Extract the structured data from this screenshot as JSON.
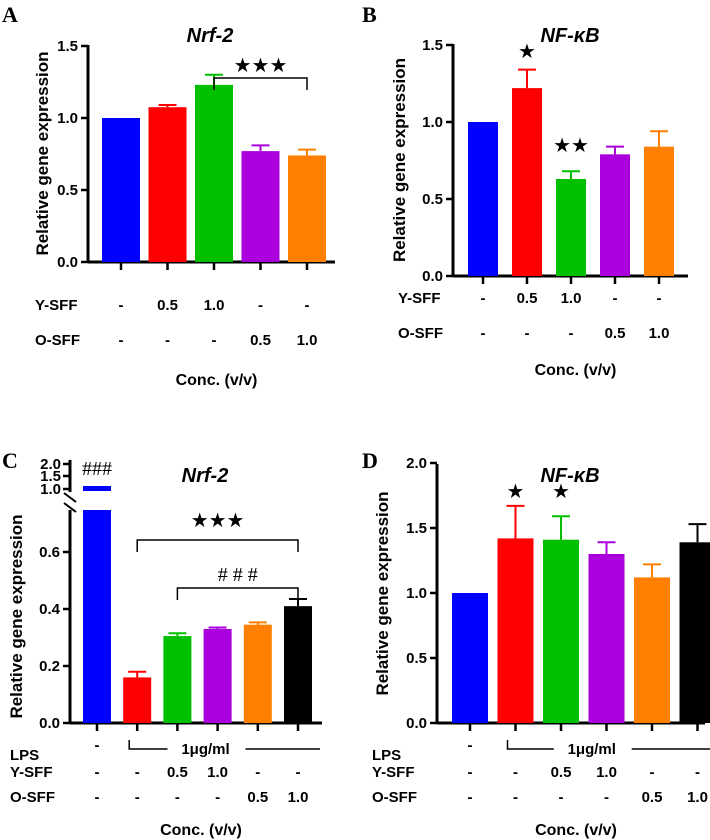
{
  "chart_data": [
    {
      "type": "bar",
      "panel": "A",
      "title": "Nrf-2",
      "ylabel": "Relative gene expression",
      "xlabel": "Conc. (v/v)",
      "ylim": [
        0,
        1.5
      ],
      "yticks": [
        "0.0",
        "0.5",
        "1.0",
        "1.5"
      ],
      "ytick_values": [
        0,
        0.5,
        1.0,
        1.5
      ],
      "colors": [
        "#0000ff",
        "#ff0000",
        "#00c000",
        "#aa00dd",
        "#ff8000"
      ],
      "values": [
        1.0,
        1.075,
        1.23,
        0.77,
        0.74
      ],
      "errors": [
        0,
        0.015,
        0.07,
        0.04,
        0.04
      ],
      "conditions": [
        {
          "name": "Y-SFF",
          "values": [
            "-",
            "0.5",
            "1.0",
            "-",
            "-"
          ]
        },
        {
          "name": "O-SFF",
          "values": [
            "-",
            "-",
            "-",
            "0.5",
            "1.0"
          ]
        }
      ],
      "annotations": [
        {
          "text": "★★★",
          "from": 2,
          "to": 4,
          "bracket": true
        }
      ]
    },
    {
      "type": "bar",
      "panel": "B",
      "title": "NF-κB",
      "ylabel": "Relative gene expression",
      "xlabel": "Conc. (v/v)",
      "ylim": [
        0,
        1.5
      ],
      "yticks": [
        "0.0",
        "0.5",
        "1.0",
        "1.5"
      ],
      "ytick_values": [
        0,
        0.5,
        1.0,
        1.5
      ],
      "colors": [
        "#0000ff",
        "#ff0000",
        "#00c000",
        "#aa00dd",
        "#ff8000"
      ],
      "values": [
        1.0,
        1.22,
        0.63,
        0.79,
        0.84
      ],
      "errors": [
        0,
        0.12,
        0.05,
        0.05,
        0.1
      ],
      "conditions": [
        {
          "name": "Y-SFF",
          "values": [
            "-",
            "0.5",
            "1.0",
            "-",
            "-"
          ]
        },
        {
          "name": "O-SFF",
          "values": [
            "-",
            "-",
            "-",
            "0.5",
            "1.0"
          ]
        }
      ],
      "annotations": [
        {
          "text": "★",
          "from": 1,
          "to": 1,
          "bracket": false
        },
        {
          "text": "★★",
          "from": 2,
          "to": 2,
          "bracket": false
        }
      ]
    },
    {
      "type": "bar",
      "panel": "C",
      "title": "Nrf-2",
      "ylabel": "Relative gene expression",
      "xlabel": "Conc. (v/v)",
      "ylim": [
        0,
        2.0
      ],
      "axis_break": [
        0.75,
        1.0
      ],
      "yticks": [
        "0.0",
        "0.2",
        "0.4",
        "0.6"
      ],
      "ytick_values": [
        0,
        0.2,
        0.4,
        0.6
      ],
      "upper_yticks": [
        "1.0",
        "1.5",
        "2.0"
      ],
      "colors": [
        "#0000ff",
        "#ff0000",
        "#00c000",
        "#aa00dd",
        "#ff8000",
        "#000000"
      ],
      "values": [
        1.0,
        0.16,
        0.305,
        0.33,
        0.345,
        0.41
      ],
      "errors": [
        0,
        0.02,
        0.01,
        0.005,
        0.008,
        0.025
      ],
      "lps": {
        "name": "LPS",
        "first": "-",
        "dose": "1μg/ml"
      },
      "conditions": [
        {
          "name": "Y-SFF",
          "values": [
            "-",
            "-",
            "0.5",
            "1.0",
            "-",
            "-"
          ]
        },
        {
          "name": "O-SFF",
          "values": [
            "-",
            "-",
            "-",
            "-",
            "0.5",
            "1.0"
          ]
        }
      ],
      "annotations": [
        {
          "text": "###",
          "from": 0,
          "to": 0,
          "bracket": false
        },
        {
          "text": "★★★",
          "from": 1,
          "to": 5,
          "bracket": true
        },
        {
          "text": "# # #",
          "from": 2,
          "to": 5,
          "bracket": true
        }
      ]
    },
    {
      "type": "bar",
      "panel": "D",
      "title": "NF-κB",
      "ylabel": "Relative gene expression",
      "xlabel": "Conc. (v/v)",
      "ylim": [
        0,
        2.0
      ],
      "yticks": [
        "0.0",
        "0.5",
        "1.0",
        "1.5",
        "2.0"
      ],
      "ytick_values": [
        0,
        0.5,
        1.0,
        1.5,
        2.0
      ],
      "colors": [
        "#0000ff",
        "#ff0000",
        "#00c000",
        "#aa00dd",
        "#ff8000",
        "#000000"
      ],
      "values": [
        1.0,
        1.42,
        1.41,
        1.3,
        1.12,
        1.39
      ],
      "errors": [
        0,
        0.25,
        0.18,
        0.09,
        0.1,
        0.14
      ],
      "lps": {
        "name": "LPS",
        "first": "-",
        "dose": "1μg/ml"
      },
      "conditions": [
        {
          "name": "Y-SFF",
          "values": [
            "-",
            "-",
            "0.5",
            "1.0",
            "-",
            "-"
          ]
        },
        {
          "name": "O-SFF",
          "values": [
            "-",
            "-",
            "-",
            "-",
            "0.5",
            "1.0"
          ]
        }
      ],
      "annotations": [
        {
          "text": "★",
          "from": 1,
          "to": 1,
          "bracket": false
        },
        {
          "text": "★",
          "from": 2,
          "to": 2,
          "bracket": false
        }
      ]
    }
  ]
}
